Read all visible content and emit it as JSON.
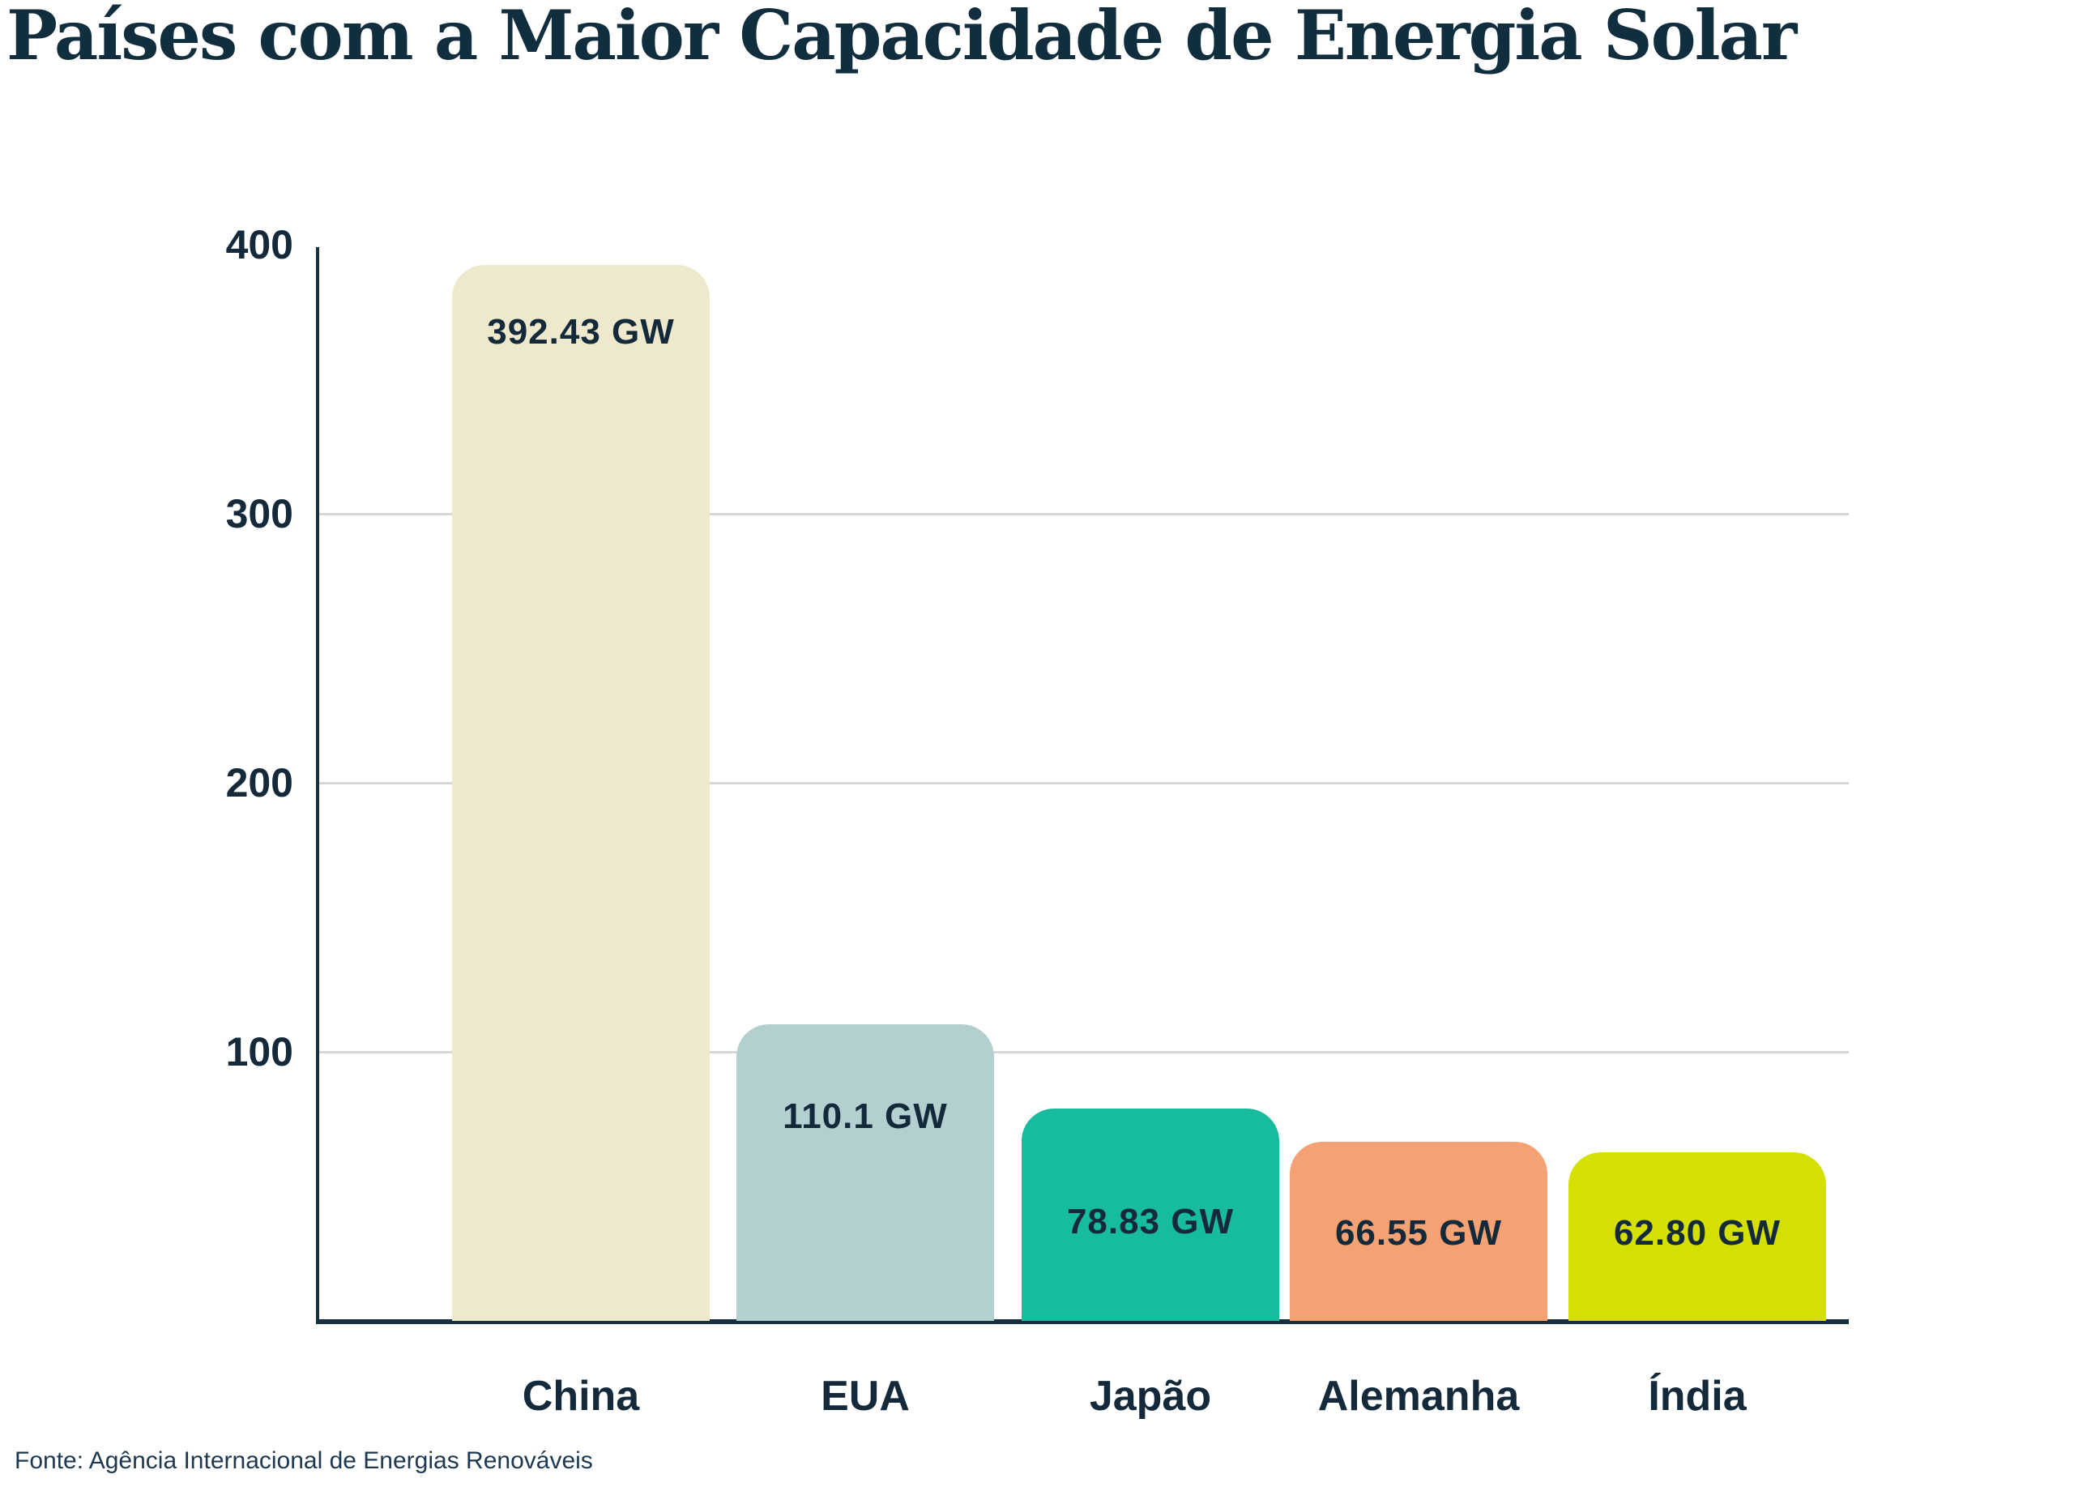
{
  "title": "Países com a Maior Capacidade de Energia Solar",
  "source": "Fonte: Agência Internacional de Energias Renováveis",
  "colors": {
    "background": "#ffffff",
    "title_text": "#112e3f",
    "label_text": "#14293a",
    "grid": "#d3d7da",
    "axis": "#16303f"
  },
  "chart_data": {
    "type": "bar",
    "title": "Países com a Maior Capacidade de Energia Solar",
    "categories": [
      "China",
      "EUA",
      "Japão",
      "Alemanha",
      "Índia"
    ],
    "values": [
      392.43,
      110.1,
      78.83,
      66.55,
      62.8
    ],
    "value_labels": [
      "392.43 GW",
      "110.1 GW",
      "78.83 GW",
      "66.55 GW",
      "62.80 GW"
    ],
    "bar_colors": [
      "#eee9cd",
      "#b4cfd0",
      "#16bc9c",
      "#f4a173",
      "#d4e002"
    ],
    "unit": "GW",
    "xlabel": "",
    "ylabel": "",
    "ylim": [
      0,
      400
    ],
    "yticks": [
      100,
      200,
      300,
      400
    ],
    "grid": "horizontal",
    "legend": "none",
    "source": "Fonte: Agência Internacional de Energias Renováveis"
  }
}
